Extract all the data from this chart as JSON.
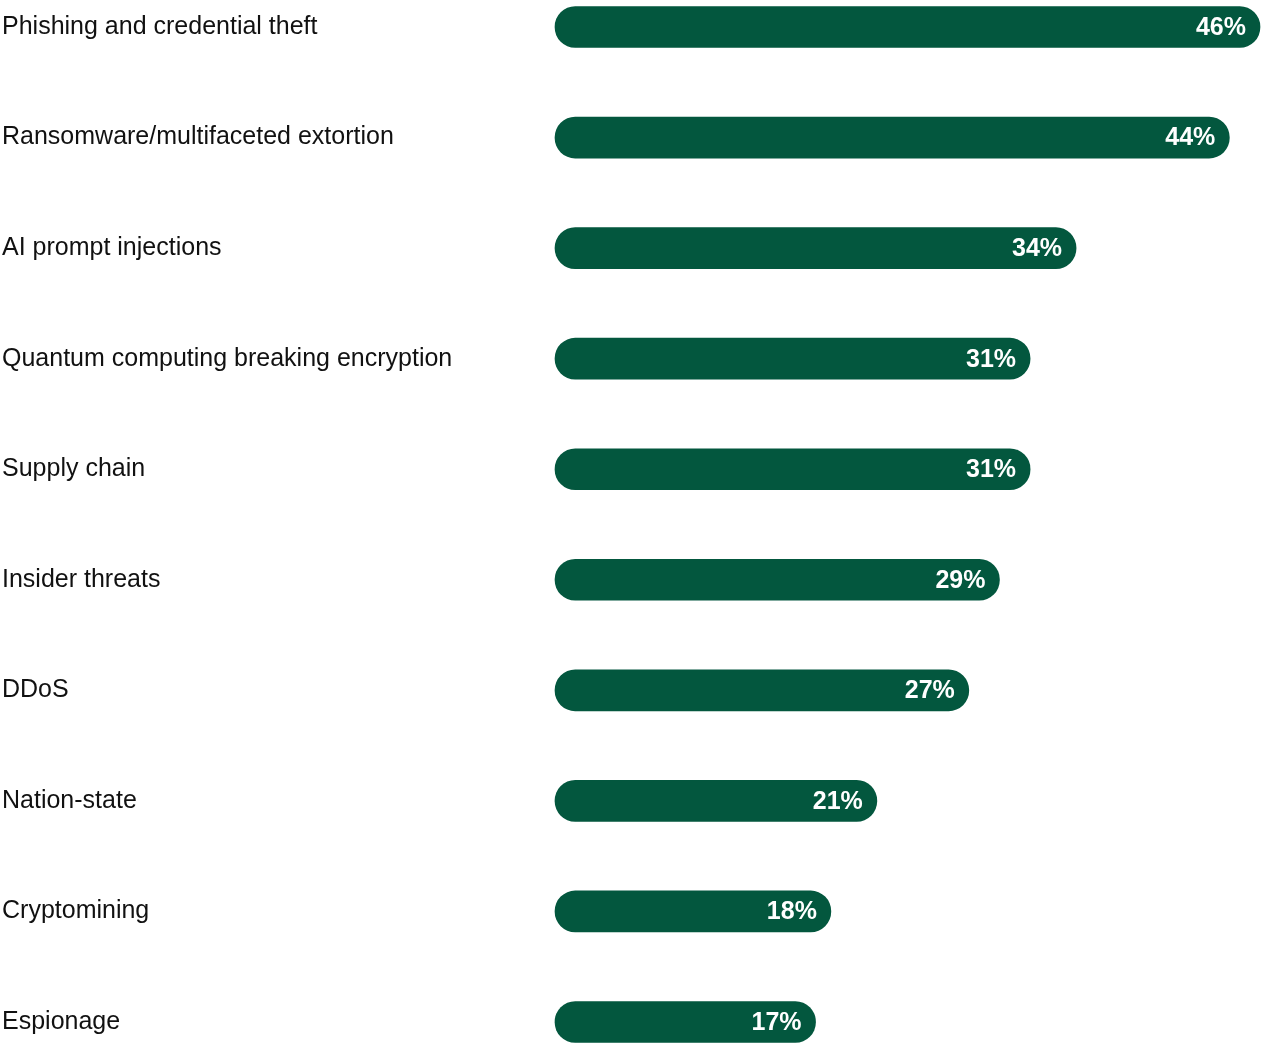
{
  "chart_data": {
    "type": "bar",
    "orientation": "horizontal",
    "categories": [
      "Phishing and credential theft",
      "Ransomware/multifaceted extortion",
      "AI prompt injections",
      "Quantum computing breaking encryption",
      "Supply chain",
      "Insider threats",
      "DDoS",
      "Nation-state",
      "Cryptomining",
      "Espionage"
    ],
    "values": [
      46,
      44,
      34,
      31,
      31,
      29,
      27,
      21,
      18,
      17
    ],
    "value_labels": [
      "46%",
      "44%",
      "34%",
      "31%",
      "31%",
      "29%",
      "27%",
      "21%",
      "18%",
      "17%"
    ],
    "color": "#03573e"
  }
}
